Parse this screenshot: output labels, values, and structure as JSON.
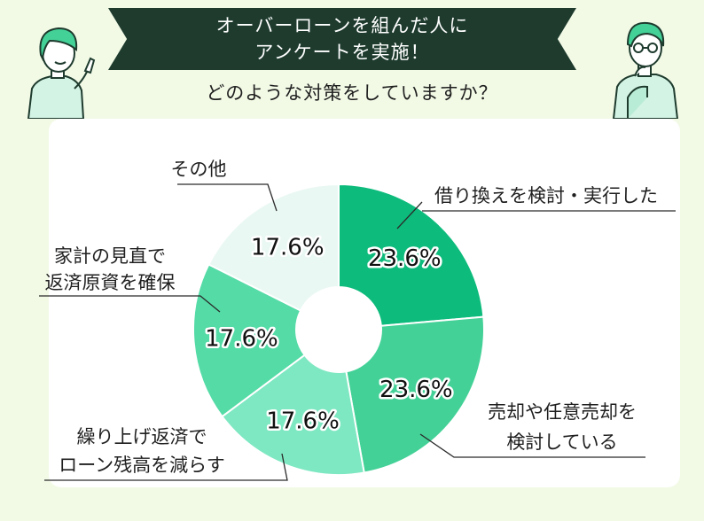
{
  "header": {
    "title_line1": "オーバーローンを組んだ人に",
    "title_line2": "アンケートを実施！",
    "question": "どのような対策をしていますか？"
  },
  "chart_data": {
    "type": "pie",
    "donut": true,
    "title": "",
    "categories": [
      "借り換えを検討・実行した",
      "売却や任意売却を検討している",
      "繰り上げ返済でローン残高を減らす",
      "家計の見直で返済原資を確保",
      "その他"
    ],
    "values": [
      23.6,
      23.6,
      17.6,
      17.6,
      17.6
    ],
    "value_labels": [
      "23.6%",
      "23.6%",
      "17.6%",
      "17.6%",
      "17.6%"
    ],
    "label_lines": [
      [
        "借り換えを検討・実行した"
      ],
      [
        "売却や任意売却を",
        "検討している"
      ],
      [
        "繰り上げ返済で",
        "ローン残高を減らす"
      ],
      [
        "家計の見直で",
        "返済原資を確保"
      ],
      [
        "その他"
      ]
    ],
    "colors": [
      "#0dbb7c",
      "#43d197",
      "#7ee8c2",
      "#54dba6",
      "#eaf8f3"
    ],
    "legend": "none"
  },
  "icons": {
    "left": "woman-pointing-icon",
    "right": "man-thinking-icon"
  }
}
